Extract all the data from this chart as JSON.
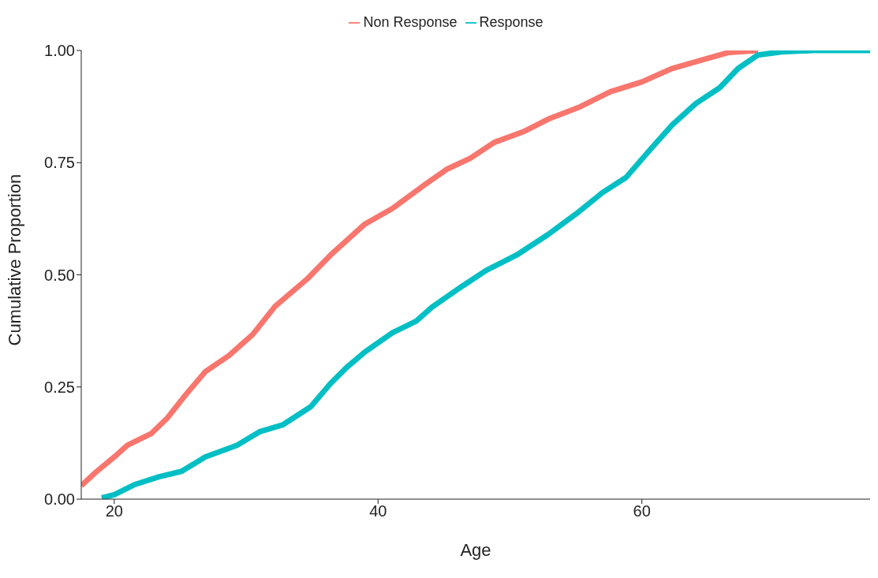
{
  "chart_data": {
    "type": "line",
    "xlabel": "Age",
    "ylabel": "Cumulative Proportion",
    "xlim": [
      17.5,
      77.3
    ],
    "xticks": [
      20,
      40,
      60
    ],
    "ylim": [
      0,
      1
    ],
    "yticks": [
      {
        "value": 0,
        "label": "0.00"
      },
      {
        "value": 0.25,
        "label": "0.25"
      },
      {
        "value": 0.5,
        "label": "0.50"
      },
      {
        "value": 0.75,
        "label": "0.75"
      },
      {
        "value": 1,
        "label": "1.00"
      }
    ],
    "grid": false,
    "legend": "top",
    "line_style": "solid",
    "marker": "none",
    "series": [
      {
        "name": "Non Response",
        "color": "#f8766d",
        "x": [
          17.5,
          18.6,
          20,
          21,
          22.8,
          24,
          25.4,
          26.9,
          28.7,
          30.5,
          32.2,
          34.6,
          36.4,
          39,
          41.1,
          43.5,
          45.2,
          47,
          48.8,
          51.1,
          52.9,
          55.2,
          57.6,
          60,
          62.3,
          64.7,
          66.5,
          68.8
        ],
        "values": [
          0.03,
          0.06,
          0.094,
          0.12,
          0.146,
          0.18,
          0.232,
          0.284,
          0.32,
          0.367,
          0.43,
          0.49,
          0.544,
          0.613,
          0.648,
          0.7,
          0.735,
          0.76,
          0.795,
          0.82,
          0.847,
          0.873,
          0.908,
          0.93,
          0.96,
          0.98,
          0.995,
          1
        ]
      },
      {
        "name": "Response",
        "color": "#00bfc4",
        "x": [
          19.05,
          20,
          21.6,
          23.4,
          25.1,
          26.9,
          29.3,
          31,
          32.8,
          34.9,
          36.4,
          37.6,
          39,
          41.1,
          42.9,
          44.1,
          46.4,
          48.2,
          50.5,
          52.9,
          55.2,
          57,
          58.8,
          60.6,
          62.3,
          64.1,
          65.9,
          67.3,
          68.8,
          70.6,
          73,
          77.3
        ],
        "values": [
          0.003,
          0.01,
          0.033,
          0.05,
          0.062,
          0.094,
          0.12,
          0.15,
          0.166,
          0.206,
          0.258,
          0.293,
          0.328,
          0.371,
          0.397,
          0.428,
          0.475,
          0.51,
          0.544,
          0.59,
          0.64,
          0.683,
          0.717,
          0.778,
          0.834,
          0.882,
          0.917,
          0.96,
          0.99,
          0.997,
          1,
          1
        ]
      }
    ]
  }
}
